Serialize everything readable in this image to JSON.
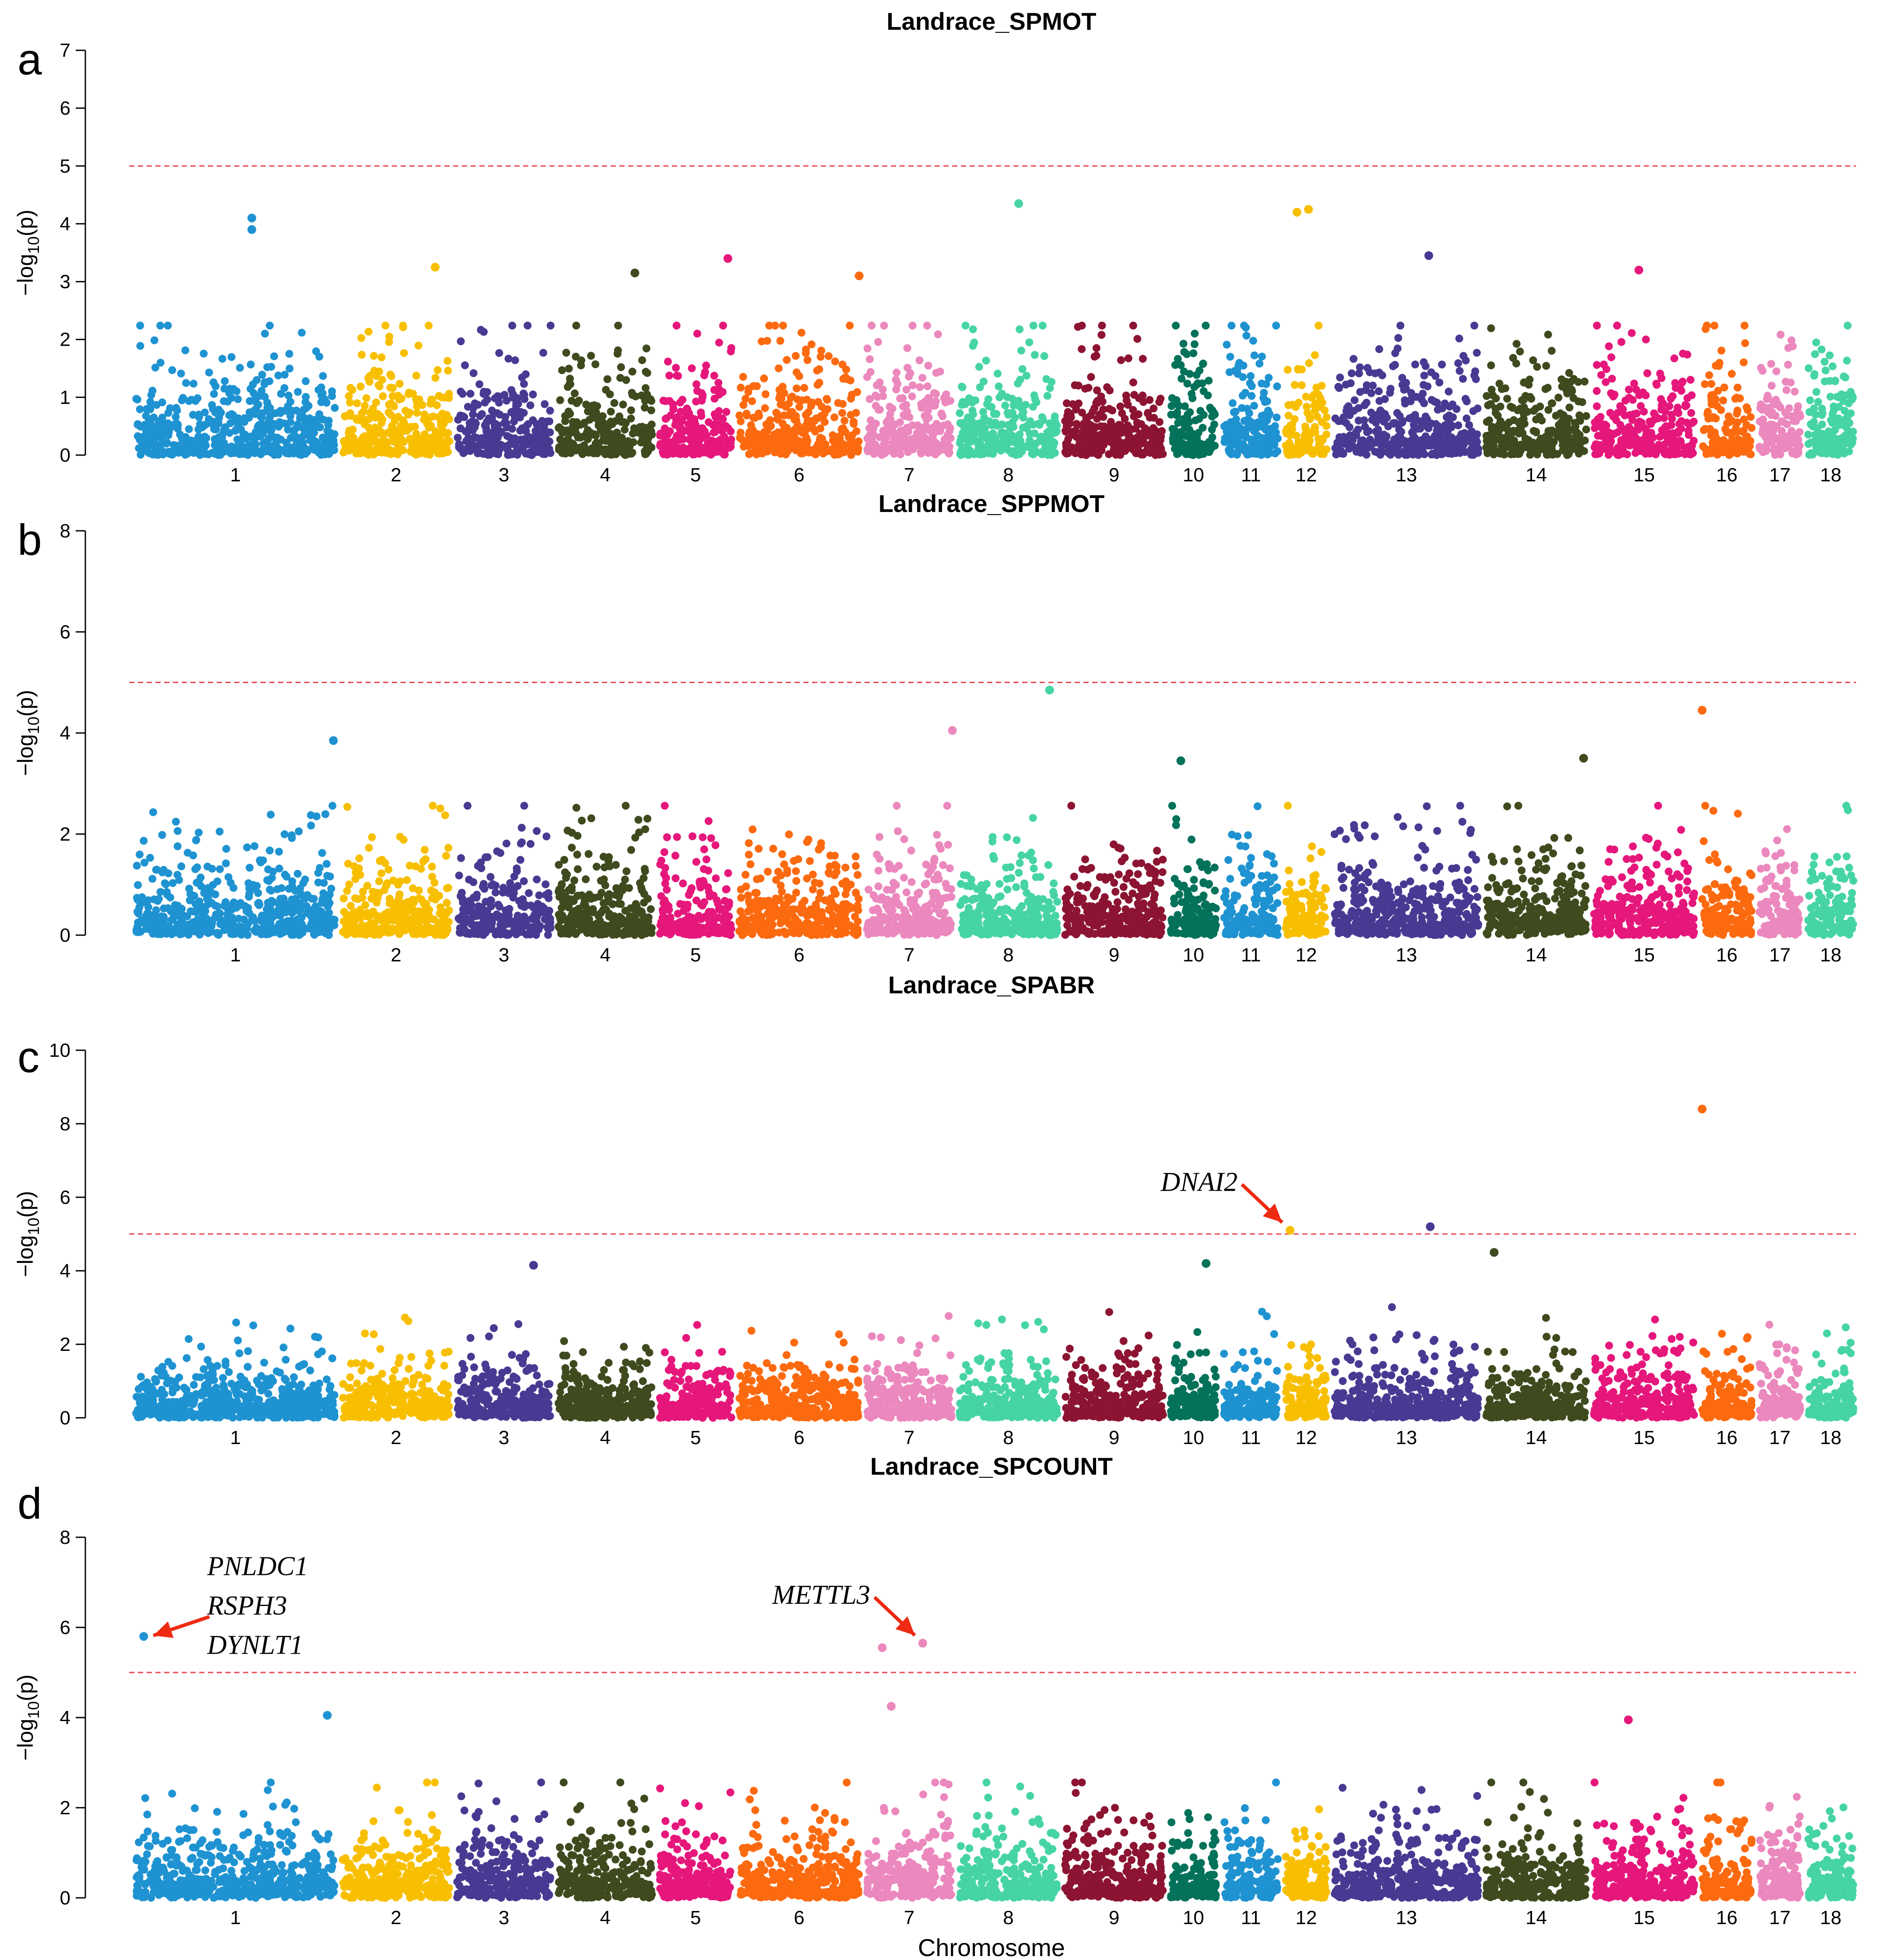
{
  "figure": {
    "x_axis_label": "Chromosome",
    "y_axis_label": {
      "prefix": "−log",
      "subscript": "10",
      "suffix": "(p)"
    }
  },
  "chart_data": [
    {
      "panel": "a",
      "type": "scatter",
      "title": "Landrace_SPMOT",
      "ylim": [
        0,
        7
      ],
      "yticks": [
        0,
        1,
        2,
        3,
        4,
        5,
        6,
        7
      ],
      "threshold": 5,
      "xlabel": "",
      "ylabel": "−log10(p)",
      "chromosomes": [
        "1",
        "2",
        "3",
        "4",
        "5",
        "6",
        "7",
        "8",
        "9",
        "10",
        "11",
        "12",
        "13",
        "14",
        "15",
        "16",
        "17",
        "18"
      ],
      "peaks": [
        {
          "chr": "1",
          "pos": 0.58,
          "value": 4.1
        },
        {
          "chr": "1",
          "pos": 0.58,
          "value": 3.9
        },
        {
          "chr": "2",
          "pos": 0.85,
          "value": 3.25
        },
        {
          "chr": "4",
          "pos": 0.8,
          "value": 3.15
        },
        {
          "chr": "5",
          "pos": 0.92,
          "value": 3.4
        },
        {
          "chr": "6",
          "pos": 0.98,
          "value": 3.1
        },
        {
          "chr": "8",
          "pos": 0.6,
          "value": 4.35
        },
        {
          "chr": "12",
          "pos": 0.3,
          "value": 4.2
        },
        {
          "chr": "12",
          "pos": 0.55,
          "value": 4.25
        },
        {
          "chr": "13",
          "pos": 0.65,
          "value": 3.45
        },
        {
          "chr": "15",
          "pos": 0.45,
          "value": 3.2
        }
      ],
      "annotations": []
    },
    {
      "panel": "b",
      "type": "scatter",
      "title": "Landrace_SPPMOT",
      "ylim": [
        0,
        8
      ],
      "yticks": [
        0,
        2,
        4,
        6,
        8
      ],
      "threshold": 5,
      "xlabel": "",
      "ylabel": "−log10(p)",
      "chromosomes": [
        "1",
        "2",
        "3",
        "4",
        "5",
        "6",
        "7",
        "8",
        "9",
        "10",
        "11",
        "12",
        "13",
        "14",
        "15",
        "16",
        "17",
        "18"
      ],
      "peaks": [
        {
          "chr": "1",
          "pos": 0.98,
          "value": 3.85
        },
        {
          "chr": "7",
          "pos": 0.98,
          "value": 4.05
        },
        {
          "chr": "8",
          "pos": 0.9,
          "value": 4.85
        },
        {
          "chr": "10",
          "pos": 0.25,
          "value": 3.45
        },
        {
          "chr": "14",
          "pos": 0.95,
          "value": 3.5
        },
        {
          "chr": "16",
          "pos": 0.05,
          "value": 4.45
        }
      ],
      "annotations": []
    },
    {
      "panel": "c",
      "type": "scatter",
      "title": "Landrace_SPABR",
      "ylim": [
        0,
        10
      ],
      "yticks": [
        0,
        2,
        4,
        6,
        8,
        10
      ],
      "threshold": 5,
      "xlabel": "",
      "ylabel": "−log10(p)",
      "chromosomes": [
        "1",
        "2",
        "3",
        "4",
        "5",
        "6",
        "7",
        "8",
        "9",
        "10",
        "11",
        "12",
        "13",
        "14",
        "15",
        "16",
        "17",
        "18"
      ],
      "peaks": [
        {
          "chr": "3",
          "pos": 0.8,
          "value": 4.15
        },
        {
          "chr": "10",
          "pos": 0.75,
          "value": 4.2
        },
        {
          "chr": "12",
          "pos": 0.15,
          "value": 5.1
        },
        {
          "chr": "13",
          "pos": 0.66,
          "value": 5.2
        },
        {
          "chr": "14",
          "pos": 0.1,
          "value": 4.5
        },
        {
          "chr": "16",
          "pos": 0.05,
          "value": 8.4
        }
      ],
      "annotations": [
        {
          "genes": [
            "DNAI2"
          ],
          "chr": "12",
          "pos": 0.15,
          "value": 5.1,
          "side": "left"
        }
      ]
    },
    {
      "panel": "d",
      "type": "scatter",
      "title": "Landrace_SPCOUNT",
      "ylim": [
        0,
        8
      ],
      "yticks": [
        0,
        2,
        4,
        6,
        8
      ],
      "threshold": 5,
      "xlabel": "Chromosome",
      "ylabel": "−log10(p)",
      "chromosomes": [
        "1",
        "2",
        "3",
        "4",
        "5",
        "6",
        "7",
        "8",
        "9",
        "10",
        "11",
        "12",
        "13",
        "14",
        "15",
        "16",
        "17",
        "18"
      ],
      "peaks": [
        {
          "chr": "1",
          "pos": 0.05,
          "value": 5.8
        },
        {
          "chr": "1",
          "pos": 0.95,
          "value": 4.05
        },
        {
          "chr": "7",
          "pos": 0.2,
          "value": 5.55
        },
        {
          "chr": "7",
          "pos": 0.65,
          "value": 5.65
        },
        {
          "chr": "7",
          "pos": 0.3,
          "value": 4.25
        },
        {
          "chr": "15",
          "pos": 0.35,
          "value": 3.95
        }
      ],
      "annotations": [
        {
          "genes": [
            "PNLDC1",
            "RSPH3",
            "DYNLT1"
          ],
          "chr": "1",
          "pos": 0.05,
          "value": 5.8,
          "side": "right"
        },
        {
          "genes": [
            "METTL3"
          ],
          "chr": "7",
          "pos": 0.65,
          "value": 5.65,
          "side": "left"
        }
      ]
    }
  ],
  "colors": {
    "chromosomes": [
      "#1f93d1",
      "#f8bf00",
      "#483a92",
      "#3f4a1e",
      "#e6177b",
      "#fc6a10",
      "#eb88bd",
      "#46d4a6",
      "#8c1432",
      "#04725a",
      "#1f93d1",
      "#f8bf00",
      "#483a92",
      "#3f4a1e",
      "#e6177b",
      "#fc6a10",
      "#eb88bd",
      "#46d4a6"
    ],
    "threshold": "#e8474c",
    "arrow": "#ee2a12"
  }
}
